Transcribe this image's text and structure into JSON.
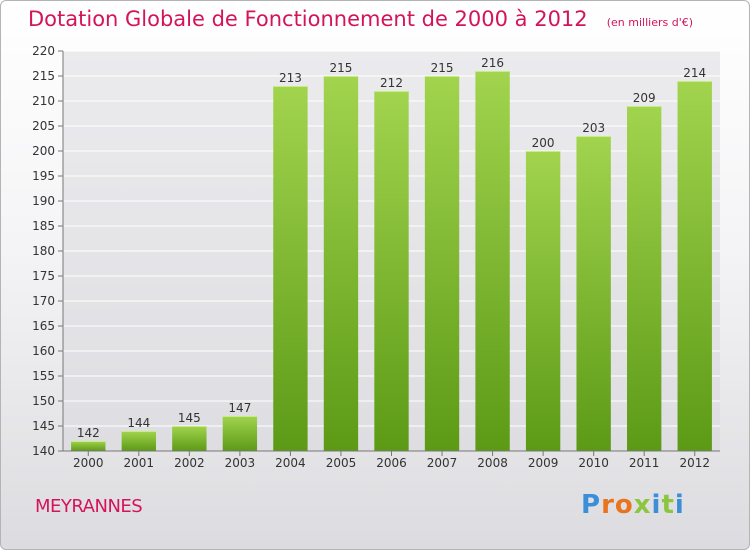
{
  "chart_data": {
    "type": "bar",
    "title": "Dotation Globale de Fonctionnement de 2000 à 2012",
    "subtitle": "(en milliers d'€)",
    "categories": [
      "2000",
      "2001",
      "2002",
      "2003",
      "2004",
      "2005",
      "2006",
      "2007",
      "2008",
      "2009",
      "2010",
      "2011",
      "2012"
    ],
    "values": [
      142,
      144,
      145,
      147,
      213,
      215,
      212,
      215,
      216,
      200,
      203,
      209,
      214
    ],
    "ylim": [
      140,
      220
    ],
    "yticks": [
      140,
      145,
      150,
      155,
      160,
      165,
      170,
      175,
      180,
      185,
      190,
      195,
      200,
      205,
      210,
      215,
      220
    ],
    "grid": true,
    "bar_color_top": "#a2d44e",
    "bar_color_bottom": "#5c9a16"
  },
  "footer": {
    "city": "MEYRANNES",
    "brand": "Proxiti"
  },
  "colors": {
    "title": "#d4145a",
    "brand_letters": [
      "#3a8fd8",
      "#e8741e",
      "#e8741e",
      "#8cc63f",
      "#3a8fd8",
      "#8cc63f",
      "#3a8fd8"
    ]
  }
}
